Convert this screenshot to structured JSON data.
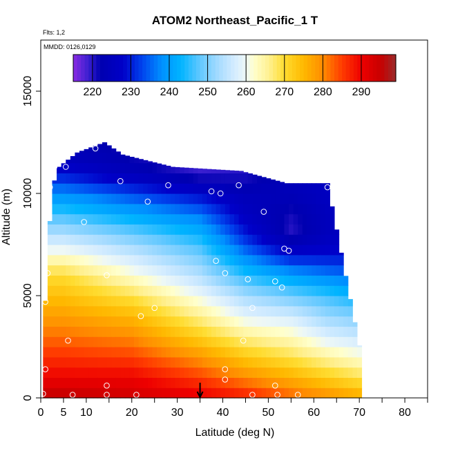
{
  "chart_data": {
    "type": "heatmap",
    "title": "ATOM2 Northeast_Pacific_1 T",
    "notes": [
      "Flts: 1,2",
      "MMDD: 0126,0129"
    ],
    "xlabel": "Latitude (deg N)",
    "ylabel": "Altitude (m)",
    "xlim": [
      0,
      85
    ],
    "ylim": [
      0,
      17500
    ],
    "x_ticks": [
      0,
      5,
      10,
      20,
      30,
      40,
      50,
      60,
      70,
      80
    ],
    "x_tick_labels": [
      "0",
      "5",
      "10",
      "20",
      "30",
      "40",
      "50",
      "60",
      "70",
      "80"
    ],
    "x_minor_ticks": [
      0,
      5,
      10,
      15,
      20,
      25,
      30,
      35,
      40,
      45,
      50,
      55,
      60,
      65,
      70,
      75,
      80,
      85
    ],
    "y_ticks": [
      0,
      5000,
      10000,
      15000
    ],
    "y_tick_labels": [
      "0",
      "5000",
      "10000",
      "15000"
    ],
    "colorbar": {
      "min": 215,
      "max": 299,
      "ticks": [
        220,
        230,
        240,
        250,
        260,
        270,
        280,
        290
      ],
      "tick_labels": [
        "220",
        "230",
        "240",
        "250",
        "260",
        "270",
        "280",
        "290"
      ],
      "colors": [
        {
          "v": 215,
          "c": "#8a2be2"
        },
        {
          "v": 219,
          "c": "#3a1fd0"
        },
        {
          "v": 222,
          "c": "#0000b0"
        },
        {
          "v": 228,
          "c": "#0000c8"
        },
        {
          "v": 233,
          "c": "#0044ee"
        },
        {
          "v": 238,
          "c": "#0090ff"
        },
        {
          "v": 243,
          "c": "#00b4ff"
        },
        {
          "v": 248,
          "c": "#62c8ff"
        },
        {
          "v": 253,
          "c": "#a8dcff"
        },
        {
          "v": 257,
          "c": "#d4ecff"
        },
        {
          "v": 260,
          "c": "#eef8f6"
        },
        {
          "v": 262,
          "c": "#ffffcc"
        },
        {
          "v": 266,
          "c": "#fff090"
        },
        {
          "v": 270,
          "c": "#ffdc30"
        },
        {
          "v": 275,
          "c": "#ffb800"
        },
        {
          "v": 280,
          "c": "#ff8c00"
        },
        {
          "v": 285,
          "c": "#ff3c00"
        },
        {
          "v": 290,
          "c": "#ee0000"
        },
        {
          "v": 295,
          "c": "#c80000"
        },
        {
          "v": 299,
          "c": "#9a2a2a"
        }
      ]
    },
    "data_extent": {
      "bottom_lat_range": [
        0.5,
        70.5
      ],
      "upper_envelope": [
        {
          "lat": 0.5,
          "alt_top": 2500
        },
        {
          "lat": 1.5,
          "alt_top": 7000
        },
        {
          "lat": 2.5,
          "alt_top": 10300
        },
        {
          "lat": 4,
          "alt_top": 11300
        },
        {
          "lat": 8,
          "alt_top": 12000
        },
        {
          "lat": 14,
          "alt_top": 12500
        },
        {
          "lat": 18,
          "alt_top": 11900
        },
        {
          "lat": 29,
          "alt_top": 11300
        },
        {
          "lat": 44,
          "alt_top": 11100
        },
        {
          "lat": 54,
          "alt_top": 10500
        },
        {
          "lat": 63,
          "alt_top": 10500
        },
        {
          "lat": 70.5,
          "alt_top": 2000
        }
      ]
    },
    "temperature_profiles": [
      {
        "lat": 5,
        "points": [
          [
            0,
            296
          ],
          [
            1000,
            290
          ],
          [
            2000,
            286
          ],
          [
            3000,
            282
          ],
          [
            4000,
            278
          ],
          [
            5000,
            274
          ],
          [
            6000,
            270
          ],
          [
            7000,
            262
          ],
          [
            8000,
            254
          ],
          [
            9000,
            246
          ],
          [
            10000,
            238
          ],
          [
            11000,
            229
          ],
          [
            12000,
            224
          ]
        ]
      },
      {
        "lat": 20,
        "points": [
          [
            0,
            294
          ],
          [
            1000,
            290
          ],
          [
            2000,
            285
          ],
          [
            3000,
            280
          ],
          [
            4000,
            275
          ],
          [
            5000,
            269
          ],
          [
            6000,
            262
          ],
          [
            7000,
            256
          ],
          [
            8000,
            249
          ],
          [
            9000,
            241
          ],
          [
            10000,
            233
          ],
          [
            11000,
            224
          ],
          [
            12000,
            221
          ]
        ]
      },
      {
        "lat": 35,
        "points": [
          [
            0,
            291
          ],
          [
            1000,
            285
          ],
          [
            2000,
            279
          ],
          [
            3000,
            272
          ],
          [
            4000,
            266
          ],
          [
            5000,
            260
          ],
          [
            6000,
            254
          ],
          [
            7000,
            249
          ],
          [
            8000,
            243
          ],
          [
            9000,
            236
          ],
          [
            10000,
            228
          ],
          [
            11000,
            219
          ]
        ]
      },
      {
        "lat": 45,
        "points": [
          [
            0,
            288
          ],
          [
            1000,
            280
          ],
          [
            2000,
            273
          ],
          [
            3000,
            266
          ],
          [
            4000,
            259
          ],
          [
            5000,
            253
          ],
          [
            6000,
            245
          ],
          [
            7000,
            237
          ],
          [
            8000,
            230
          ],
          [
            9000,
            226
          ],
          [
            10000,
            224
          ],
          [
            11000,
            220
          ]
        ]
      },
      {
        "lat": 55,
        "points": [
          [
            0,
            283
          ],
          [
            1000,
            276
          ],
          [
            2000,
            269
          ],
          [
            3000,
            263
          ],
          [
            4000,
            257
          ],
          [
            5000,
            249
          ],
          [
            6000,
            240
          ],
          [
            7000,
            229
          ],
          [
            8000,
            220
          ],
          [
            9000,
            221
          ],
          [
            10000,
            224
          ],
          [
            11000,
            224
          ]
        ]
      },
      {
        "lat": 63,
        "points": [
          [
            0,
            280
          ],
          [
            1000,
            272
          ],
          [
            2000,
            265
          ],
          [
            3000,
            258
          ],
          [
            4000,
            252
          ],
          [
            5000,
            246
          ],
          [
            6000,
            237
          ],
          [
            7000,
            229
          ],
          [
            8000,
            225
          ],
          [
            9000,
            225
          ],
          [
            10000,
            226
          ],
          [
            11000,
            226
          ]
        ]
      },
      {
        "lat": 70,
        "points": [
          [
            0,
            277
          ],
          [
            1000,
            269
          ],
          [
            2000,
            262
          ],
          [
            3000,
            256
          ],
          [
            4000,
            250
          ],
          [
            5000,
            243
          ],
          [
            6000,
            235
          ],
          [
            7000,
            229
          ],
          [
            8000,
            227
          ],
          [
            9000,
            226
          ],
          [
            10000,
            226
          ],
          [
            11000,
            226
          ]
        ]
      }
    ],
    "sample_points": [
      [
        12,
        12200
      ],
      [
        17.5,
        12400
      ],
      [
        3,
        11300
      ],
      [
        5.5,
        11300
      ],
      [
        2,
        10300
      ],
      [
        17.5,
        10600
      ],
      [
        28,
        10400
      ],
      [
        43.5,
        10400
      ],
      [
        37.5,
        10100
      ],
      [
        39.5,
        10000
      ],
      [
        63,
        10300
      ],
      [
        23.5,
        9600
      ],
      [
        49,
        9100
      ],
      [
        9.5,
        8600
      ],
      [
        53.5,
        7300
      ],
      [
        54.5,
        7200
      ],
      [
        38.5,
        6700
      ],
      [
        40.5,
        6100
      ],
      [
        14.5,
        6000
      ],
      [
        1.5,
        6100
      ],
      [
        45.5,
        5800
      ],
      [
        51.5,
        5700
      ],
      [
        53,
        5400
      ],
      [
        69.5,
        5100
      ],
      [
        1,
        4700
      ],
      [
        46.5,
        4400
      ],
      [
        25,
        4400
      ],
      [
        22,
        4000
      ],
      [
        6,
        2800
      ],
      [
        44.5,
        2800
      ],
      [
        40.5,
        1400
      ],
      [
        1,
        1400
      ],
      [
        40.5,
        900
      ],
      [
        14.5,
        600
      ],
      [
        51.5,
        600
      ],
      [
        0.5,
        200
      ],
      [
        7,
        150
      ],
      [
        14.5,
        150
      ],
      [
        21,
        150
      ],
      [
        46.5,
        150
      ],
      [
        52,
        150
      ],
      [
        56.5,
        150
      ]
    ],
    "arrow": {
      "lat": 35,
      "alt": 0
    },
    "grid": false,
    "legend": "colorbar-top-inset"
  }
}
